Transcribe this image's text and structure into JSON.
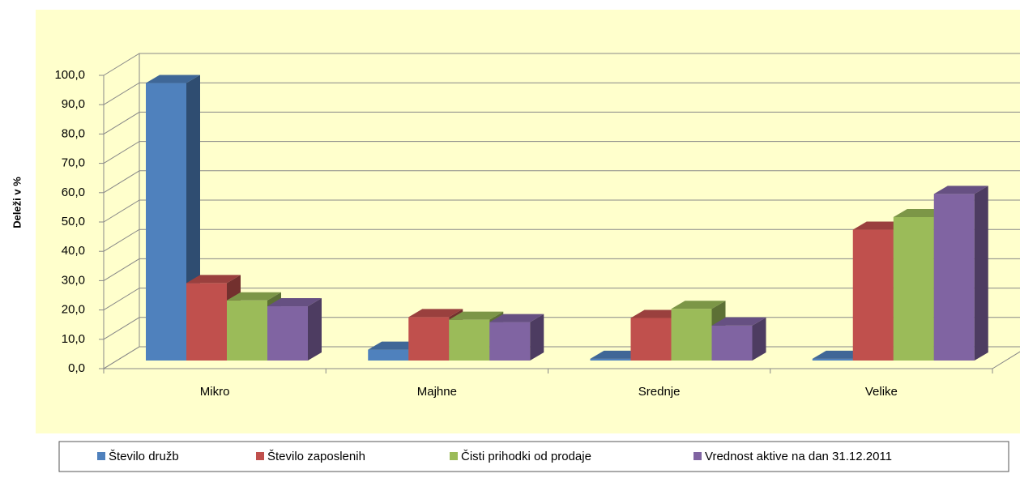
{
  "chart_data": {
    "type": "bar3d",
    "y_label": "Deleži v %",
    "categories": [
      "Mikro",
      "Majhne",
      "Srednje",
      "Velike"
    ],
    "series": [
      {
        "name": "Število družb",
        "color": "#4f81bd",
        "values": [
          94.6,
          3.7,
          0.6,
          0.6
        ]
      },
      {
        "name": "Število zaposlenih",
        "color": "#c0504d",
        "values": [
          26.4,
          14.8,
          14.5,
          44.6
        ]
      },
      {
        "name": "Čisti prihodki od prodaje",
        "color": "#9bbb59",
        "values": [
          20.5,
          13.9,
          17.6,
          48.9
        ]
      },
      {
        "name": "Vrednost aktive na dan 31.12.2011",
        "color": "#8064a2",
        "values": [
          18.5,
          13.1,
          11.9,
          56.8
        ]
      }
    ],
    "ylim": [
      0,
      100
    ],
    "yticks": [
      {
        "value": 0,
        "label": "0,0"
      },
      {
        "value": 10,
        "label": "10,0"
      },
      {
        "value": 20,
        "label": "20,0"
      },
      {
        "value": 30,
        "label": "30,0"
      },
      {
        "value": 40,
        "label": "40,0"
      },
      {
        "value": 50,
        "label": "50,0"
      },
      {
        "value": 60,
        "label": "60,0"
      },
      {
        "value": 70,
        "label": "70,0"
      },
      {
        "value": 80,
        "label": "80,0"
      },
      {
        "value": 90,
        "label": "90,0"
      },
      {
        "value": 100,
        "label": "100,0"
      }
    ],
    "grid": true
  }
}
